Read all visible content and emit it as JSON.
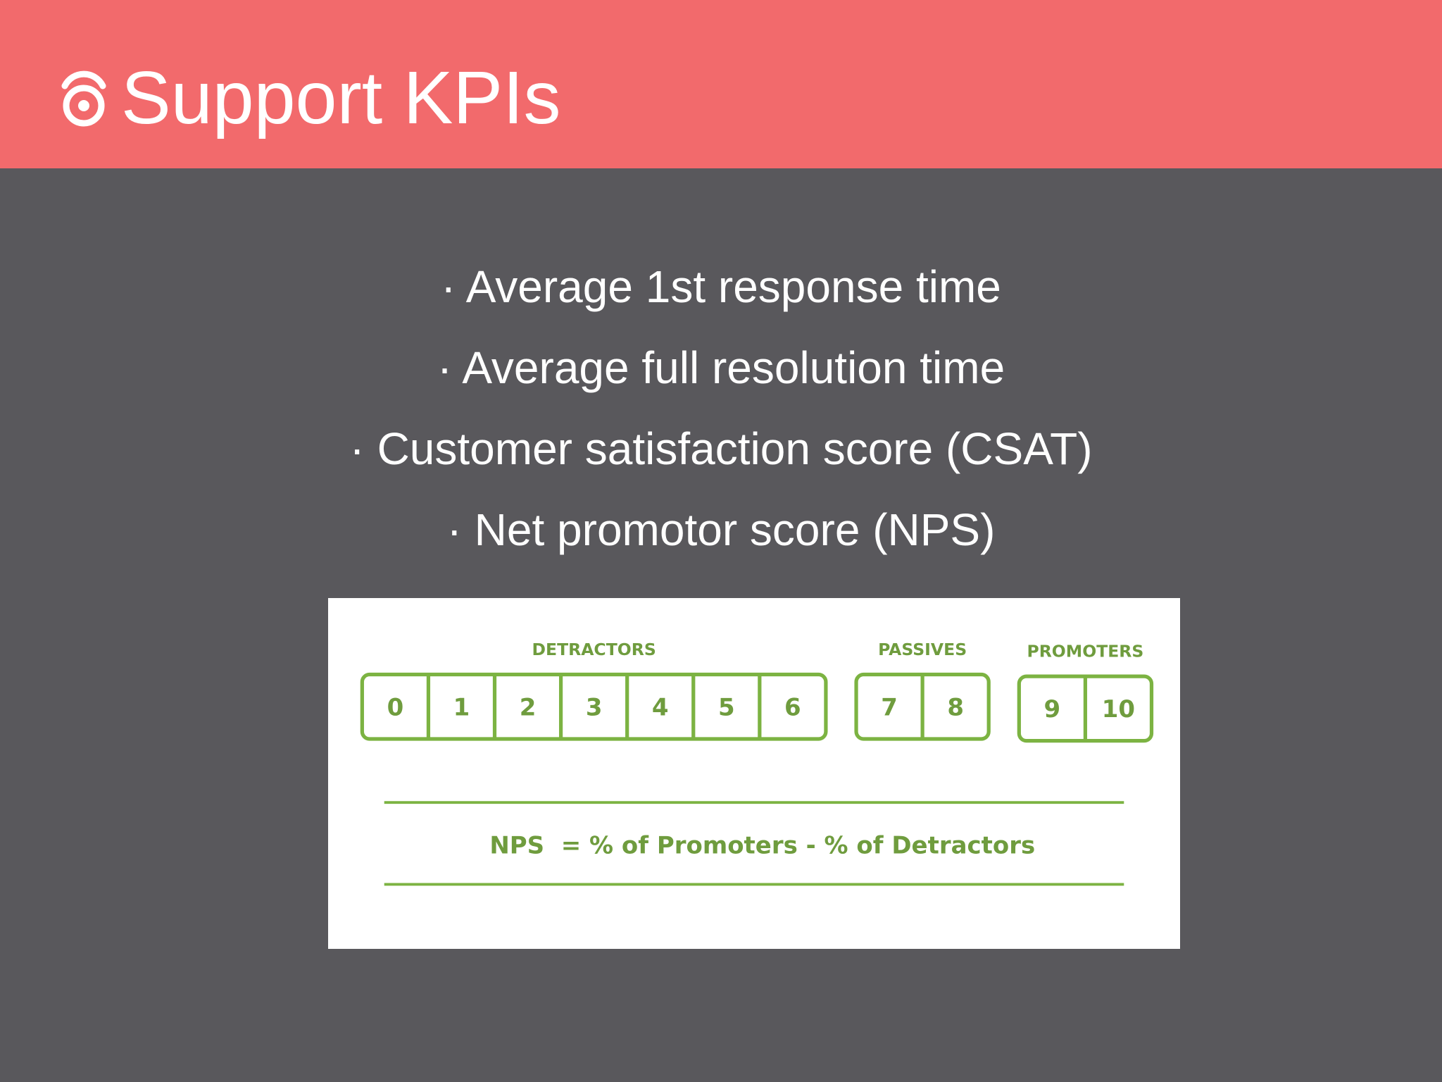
{
  "header": {
    "title": "Support KPIs"
  },
  "bullets": [
    "· Average 1st response time",
    "· Average full resolution time",
    "· Customer satisfaction score (CSAT)",
    "· Net promotor score (NPS)"
  ],
  "nps": {
    "groups": [
      {
        "label": "DETRACTORS",
        "scores": [
          0,
          1,
          2,
          3,
          4,
          5,
          6
        ]
      },
      {
        "label": "PASSIVES",
        "scores": [
          7,
          8
        ]
      },
      {
        "label": "PROMOTERS",
        "scores": [
          9,
          10
        ]
      }
    ],
    "formula": "NPS  = % of Promoters - % of Detractors"
  }
}
